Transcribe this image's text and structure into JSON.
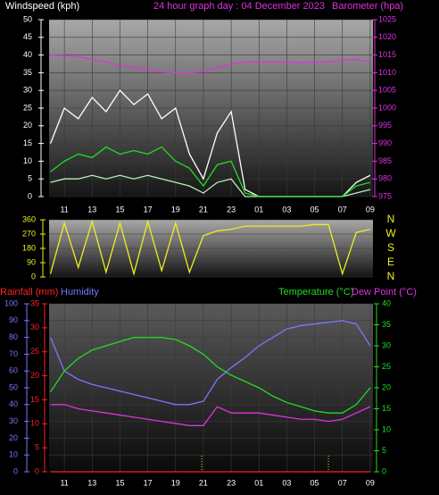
{
  "chart_data": [
    {
      "type": "line",
      "title": "24 hour graph day : 04 December 2023",
      "ylabel": "Windspeed (kph)",
      "y2label": "Barometer (hpa)",
      "x": [
        10,
        11,
        12,
        13,
        14,
        15,
        16,
        17,
        18,
        19,
        20,
        21,
        22,
        23,
        24,
        25,
        26,
        27,
        28,
        29,
        30,
        31,
        32,
        33
      ],
      "xlim": [
        9.9,
        33.2
      ],
      "xticks": [
        11,
        13,
        15,
        17,
        19,
        21,
        23,
        {
          "value": 25,
          "label": "01"
        },
        {
          "value": 27,
          "label": "03"
        },
        {
          "value": 29,
          "label": "05"
        },
        {
          "value": 31,
          "label": "07"
        },
        {
          "value": 33,
          "label": "09"
        }
      ],
      "ylim": [
        0,
        50
      ],
      "yticks": [
        0,
        5,
        10,
        15,
        20,
        25,
        30,
        35,
        40,
        45,
        50
      ],
      "y2lim": [
        975,
        1025
      ],
      "y2ticks": [
        975,
        980,
        985,
        990,
        995,
        1000,
        1005,
        1010,
        1015,
        1020,
        1025
      ],
      "grid": true,
      "series": [
        {
          "color": "#ffffff",
          "values": [
            15,
            25,
            22,
            28,
            24,
            30,
            26,
            29,
            22,
            25,
            12,
            5,
            18,
            24,
            2,
            0,
            0,
            0,
            0,
            0,
            0,
            0,
            4,
            6
          ]
        },
        {
          "color": "#b8f0b8",
          "values": [
            4,
            5,
            5,
            6,
            5,
            6,
            5,
            6,
            5,
            4,
            3,
            1,
            4,
            5,
            0,
            0,
            0,
            0,
            0,
            0,
            0,
            0,
            1,
            2
          ]
        },
        {
          "color": "#22dd22",
          "values": [
            7,
            10,
            12,
            11,
            14,
            12,
            13,
            12,
            14,
            10,
            8,
            3,
            9,
            10,
            1,
            0,
            0,
            0,
            0,
            0,
            0,
            0,
            3,
            4
          ]
        },
        {
          "color": "#dd33dd",
          "axis": "y2",
          "values": [
            1015,
            1014.8,
            1014.5,
            1013.8,
            1013,
            1012,
            1011.5,
            1011,
            1010.2,
            1010,
            1010,
            1010.3,
            1011.5,
            1012.5,
            1013,
            1013,
            1013,
            1013,
            1012.8,
            1013,
            1013,
            1013.5,
            1013.8,
            1013
          ]
        }
      ]
    },
    {
      "type": "line",
      "x": [
        10,
        11,
        12,
        13,
        14,
        15,
        16,
        17,
        18,
        19,
        20,
        21,
        22,
        23,
        24,
        25,
        26,
        27,
        28,
        29,
        30,
        31,
        32,
        33
      ],
      "xlim": [
        9.9,
        33.2
      ],
      "ylim": [
        0,
        360
      ],
      "yticks": [
        0,
        90,
        180,
        270,
        360
      ],
      "y2lim": [
        0,
        360
      ],
      "y2ticks": [
        {
          "value": 360,
          "label": "N"
        },
        {
          "value": 270,
          "label": "W"
        },
        {
          "value": 180,
          "label": "S"
        },
        {
          "value": 90,
          "label": "E"
        },
        {
          "value": 0,
          "label": "N"
        }
      ],
      "grid": true,
      "series": [
        {
          "color": "#eeee22",
          "values": [
            20,
            340,
            60,
            350,
            30,
            340,
            20,
            350,
            40,
            340,
            30,
            260,
            290,
            300,
            320,
            320,
            320,
            320,
            320,
            330,
            330,
            20,
            280,
            300
          ]
        }
      ]
    },
    {
      "type": "line",
      "x": [
        10,
        11,
        12,
        13,
        14,
        15,
        16,
        17,
        18,
        19,
        20,
        21,
        22,
        23,
        24,
        25,
        26,
        27,
        28,
        29,
        30,
        31,
        32,
        33
      ],
      "xlim": [
        9.9,
        33.2
      ],
      "xticks": [
        11,
        13,
        15,
        17,
        19,
        21,
        23,
        {
          "value": 25,
          "label": "01"
        },
        {
          "value": 27,
          "label": "03"
        },
        {
          "value": 29,
          "label": "05"
        },
        {
          "value": 31,
          "label": "07"
        },
        {
          "value": 33,
          "label": "09"
        }
      ],
      "ylim": [
        0,
        100
      ],
      "yticks": [
        0,
        10,
        20,
        30,
        40,
        50,
        60,
        70,
        80,
        90,
        100
      ],
      "y2lim": [
        0,
        35
      ],
      "y2ticks": [
        0,
        5,
        10,
        15,
        20,
        25,
        30,
        35
      ],
      "y3lim": [
        0,
        40
      ],
      "y3ticks": [
        0,
        5,
        10,
        15,
        20,
        25,
        30,
        35,
        40
      ],
      "grid": true,
      "series": [
        {
          "name": "Rainfall (mm)",
          "color": "#ff2222",
          "axis": "y2",
          "values": [
            0,
            0,
            0,
            0,
            0,
            0,
            0,
            0,
            0,
            0,
            0,
            0,
            0,
            0,
            0,
            0,
            0,
            0,
            0,
            0,
            0,
            0,
            0,
            0
          ]
        },
        {
          "name": "Humidity",
          "color": "#7777ff",
          "values": [
            80,
            60,
            55,
            52,
            50,
            48,
            46,
            44,
            42,
            40,
            40,
            42,
            55,
            62,
            68,
            75,
            80,
            85,
            87,
            88,
            89,
            90,
            88,
            75
          ]
        },
        {
          "name": "Temperature (°C)",
          "color": "#22dd22",
          "axis": "y3",
          "values": [
            19,
            24,
            27,
            29,
            30,
            31,
            32,
            32,
            32,
            31.5,
            30,
            28,
            25,
            23,
            21.5,
            20,
            18,
            16.5,
            15.5,
            14.5,
            14,
            14,
            16,
            20
          ]
        },
        {
          "name": "Dew Point (°C)",
          "color": "#dd33dd",
          "axis": "y3",
          "values": [
            16,
            16,
            15,
            14.5,
            14,
            13.5,
            13,
            12.5,
            12,
            11.5,
            11,
            11,
            15.5,
            14,
            14,
            14,
            13.5,
            13,
            12.5,
            12.5,
            12,
            12.5,
            14,
            15.5
          ]
        }
      ]
    }
  ]
}
